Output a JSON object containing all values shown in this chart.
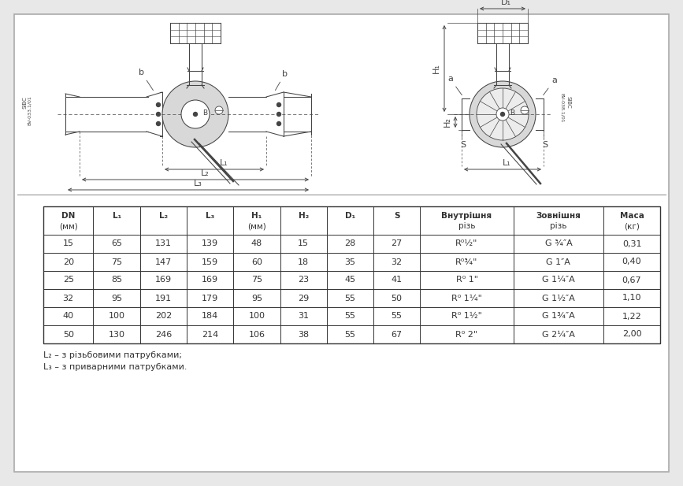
{
  "bg_color": "#e8e8e8",
  "panel_bg": "#ffffff",
  "dark": "#333333",
  "rows": [
    [
      "15",
      "65",
      "131",
      "139",
      "48",
      "15",
      "28",
      "27",
      "R⁰½\"",
      "G ¾″A",
      "0,31"
    ],
    [
      "20",
      "75",
      "147",
      "159",
      "60",
      "18",
      "35",
      "32",
      "R⁰¾\"",
      "G 1″A",
      "0,40"
    ],
    [
      "25",
      "85",
      "169",
      "169",
      "75",
      "23",
      "45",
      "41",
      "R⁰ 1\"",
      "G 1¼″A",
      "0,67"
    ],
    [
      "32",
      "95",
      "191",
      "179",
      "95",
      "29",
      "55",
      "50",
      "R⁰ 1¼\"",
      "G 1½″A",
      "1,10"
    ],
    [
      "40",
      "100",
      "202",
      "184",
      "100",
      "31",
      "55",
      "55",
      "R⁰ 1½\"",
      "G 1¾″A",
      "1,22"
    ],
    [
      "50",
      "130",
      "246",
      "214",
      "106",
      "38",
      "55",
      "67",
      "R⁰ 2\"",
      "G 2¼″A",
      "2,00"
    ]
  ],
  "footnote1": "L₂ – з різьбовими патрубками;",
  "footnote2": "L₃ – з приварними патрубками.",
  "col_rel": [
    0.75,
    0.7,
    0.7,
    0.7,
    0.7,
    0.7,
    0.7,
    0.7,
    1.4,
    1.35,
    0.85
  ]
}
